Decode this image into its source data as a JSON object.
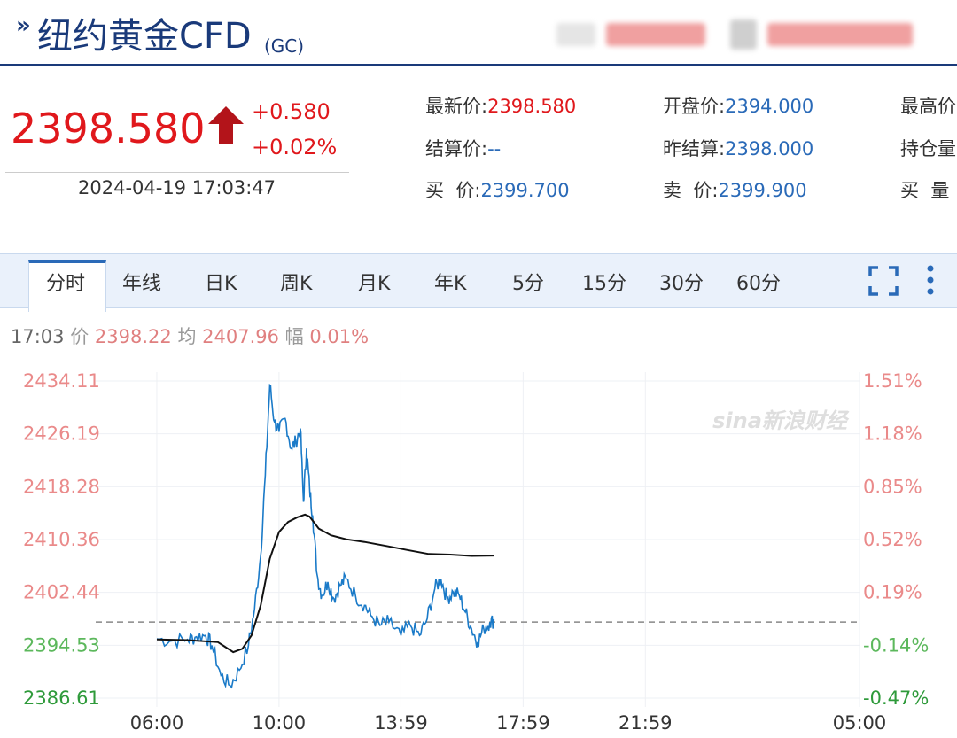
{
  "header": {
    "chevron": "»",
    "title": "纽约黄金CFD",
    "sub": "(GC)"
  },
  "quote": {
    "price": "2398.580",
    "change": "+0.580",
    "change_pct": "+0.02%",
    "time": "2024-04-19 17:03:47",
    "fields": [
      {
        "label": "最新价:",
        "value": "2398.580",
        "color": "#e0181c"
      },
      {
        "label": "开盘价:",
        "value": "2394.000",
        "color": "#2a6ab8"
      },
      {
        "label": "最高价",
        "value": "",
        "color": "#333333"
      },
      {
        "label": "结算价:",
        "value": "--",
        "color": "#2a6ab8"
      },
      {
        "label": "昨结算:",
        "value": "2398.000",
        "color": "#2a6ab8"
      },
      {
        "label": "持仓量",
        "value": "",
        "color": "#333333"
      },
      {
        "label": "买  价:",
        "value": "2399.700",
        "color": "#2a6ab8"
      },
      {
        "label": "卖  价:",
        "value": "2399.900",
        "color": "#2a6ab8"
      },
      {
        "label": "买  量",
        "value": "",
        "color": "#333333"
      }
    ]
  },
  "tabs": [
    "分时",
    "年线",
    "日K",
    "周K",
    "月K",
    "年K",
    "5分",
    "15分",
    "30分",
    "60分"
  ],
  "active_tab": "分时",
  "info": {
    "time": "17:03",
    "price_label": "价",
    "price": "2398.22",
    "avg_label": "均",
    "avg": "2407.96",
    "amp_label": "幅",
    "amp": "0.01%"
  },
  "watermark": "sina新浪财经",
  "colors": {
    "up": "#e0181c",
    "down": "#4bb04b",
    "price_line": "#1a7ac8",
    "avg_line": "#111111",
    "brand": "#1a3a7a"
  },
  "chart_data": {
    "type": "line",
    "x_ticks": [
      "06:00",
      "10:00",
      "13:59",
      "17:59",
      "21:59",
      "05:00"
    ],
    "y_ticks": [
      "2434.11",
      "2426.19",
      "2418.28",
      "2410.36",
      "2402.44",
      "2394.53",
      "2386.61"
    ],
    "y_right_ticks": [
      "1.51%",
      "1.18%",
      "0.85%",
      "0.52%",
      "0.19%",
      "-0.14%",
      "-0.47%"
    ],
    "ylim": [
      2386.61,
      2434.11
    ],
    "prev_settle": 2398.0,
    "series": [
      {
        "values": [
          [
            6.0,
            2395.5
          ],
          [
            6.5,
            2395.2
          ],
          [
            7.0,
            2395.4
          ],
          [
            7.3,
            2395.8
          ],
          [
            7.6,
            2396.0
          ],
          [
            7.8,
            2394.5
          ],
          [
            8.1,
            2390.0
          ],
          [
            8.4,
            2388.5
          ],
          [
            8.7,
            2390.8
          ],
          [
            9.0,
            2394.5
          ],
          [
            9.2,
            2400.0
          ],
          [
            9.4,
            2408.0
          ],
          [
            9.55,
            2420.0
          ],
          [
            9.7,
            2433.5
          ],
          [
            9.85,
            2428.0
          ],
          [
            10.0,
            2426.5
          ],
          [
            10.2,
            2428.5
          ],
          [
            10.4,
            2424.0
          ],
          [
            10.55,
            2425.0
          ],
          [
            10.7,
            2427.0
          ],
          [
            10.8,
            2416.0
          ],
          [
            10.9,
            2424.0
          ],
          [
            11.0,
            2418.0
          ],
          [
            11.1,
            2414.0
          ],
          [
            11.25,
            2405.0
          ],
          [
            11.4,
            2402.0
          ],
          [
            11.6,
            2404.0
          ],
          [
            11.8,
            2401.5
          ],
          [
            12.0,
            2403.5
          ],
          [
            12.2,
            2404.5
          ],
          [
            12.5,
            2402.0
          ],
          [
            12.8,
            2400.5
          ],
          [
            13.0,
            2399.0
          ],
          [
            13.3,
            2397.5
          ],
          [
            13.6,
            2398.0
          ],
          [
            13.99,
            2396.0
          ],
          [
            14.3,
            2397.5
          ],
          [
            14.6,
            2396.0
          ],
          [
            14.85,
            2398.5
          ],
          [
            15.1,
            2403.0
          ],
          [
            15.3,
            2404.5
          ],
          [
            15.5,
            2401.5
          ],
          [
            15.7,
            2402.5
          ],
          [
            15.9,
            2402.0
          ],
          [
            16.1,
            2399.5
          ],
          [
            16.3,
            2397.0
          ],
          [
            16.5,
            2395.0
          ],
          [
            16.7,
            2397.0
          ],
          [
            16.9,
            2398.0
          ],
          [
            17.05,
            2398.22
          ]
        ]
      },
      {
        "values": [
          [
            6.0,
            2395.4
          ],
          [
            7.0,
            2395.3
          ],
          [
            8.0,
            2395.0
          ],
          [
            8.5,
            2393.5
          ],
          [
            8.8,
            2394.0
          ],
          [
            9.1,
            2396.0
          ],
          [
            9.4,
            2400.5
          ],
          [
            9.7,
            2407.5
          ],
          [
            10.0,
            2411.5
          ],
          [
            10.3,
            2413.0
          ],
          [
            10.6,
            2413.7
          ],
          [
            10.85,
            2414.1
          ],
          [
            11.0,
            2413.8
          ],
          [
            11.3,
            2412.0
          ],
          [
            11.7,
            2411.0
          ],
          [
            12.2,
            2410.4
          ],
          [
            12.8,
            2410.0
          ],
          [
            13.5,
            2409.4
          ],
          [
            14.2,
            2408.8
          ],
          [
            14.9,
            2408.2
          ],
          [
            15.6,
            2408.1
          ],
          [
            16.3,
            2407.9
          ],
          [
            17.05,
            2407.96
          ]
        ]
      }
    ],
    "grid": true
  }
}
